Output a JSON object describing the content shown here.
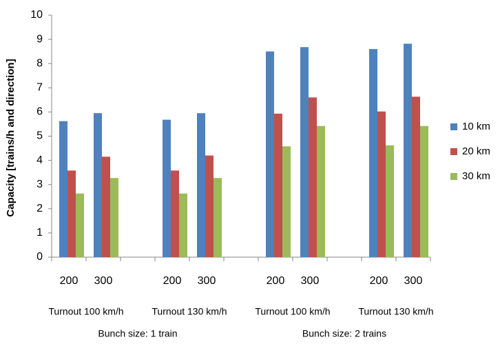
{
  "chart_data": {
    "type": "bar",
    "y_label": "Capacity [trains/h and direction]",
    "categories": [
      "200",
      "300",
      "200",
      "300",
      "200",
      "300",
      "200",
      "300"
    ],
    "groups": [
      {
        "label": "Bunch size: 1 train",
        "subgroups": [
          "Turnout 100 km/h",
          "Turnout 130 km/h"
        ]
      },
      {
        "label": "Bunch size: 2 trains",
        "subgroups": [
          "Turnout 100 km/h",
          "Turnout 130 km/h"
        ]
      }
    ],
    "series": [
      {
        "name": "10 km",
        "color": "#4f81bd",
        "values": [
          5.62,
          5.95,
          5.68,
          5.95,
          8.5,
          8.68,
          8.6,
          8.82
        ]
      },
      {
        "name": "20 km",
        "color": "#c0504d",
        "values": [
          3.58,
          4.15,
          3.58,
          4.2,
          5.93,
          6.6,
          6.02,
          6.63
        ]
      },
      {
        "name": "30 km",
        "color": "#9bbb59",
        "values": [
          2.63,
          3.27,
          2.63,
          3.27,
          4.58,
          5.42,
          4.62,
          5.42
        ]
      }
    ],
    "ylim": [
      0,
      10
    ],
    "yticks": [
      0,
      1,
      2,
      3,
      4,
      5,
      6,
      7,
      8,
      9,
      10
    ],
    "grid": false,
    "legend": "right"
  }
}
